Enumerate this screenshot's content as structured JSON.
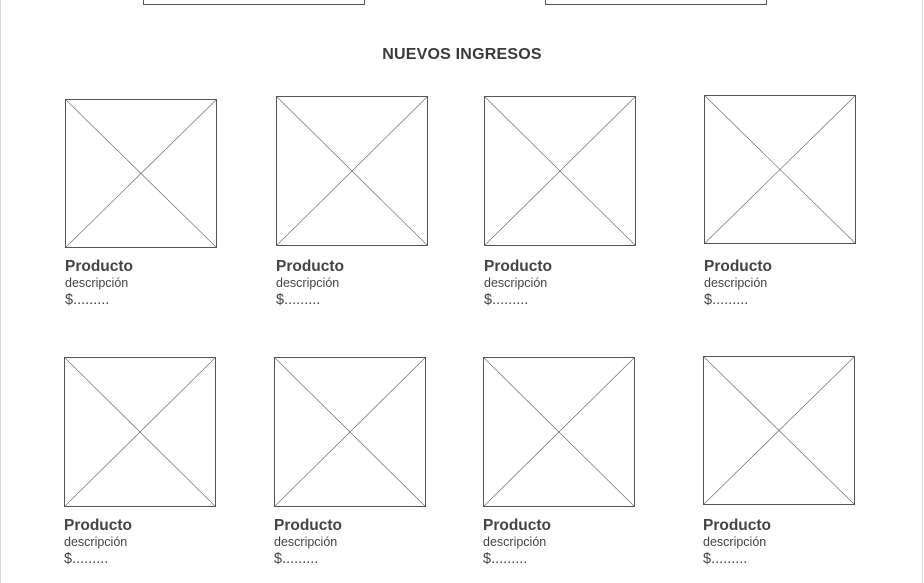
{
  "section": {
    "title": "NUEVOS INGRESOS"
  },
  "products": [
    {
      "name": "Producto",
      "description": "descripción",
      "price": "$.........",
      "image_icon": "image-placeholder-icon"
    },
    {
      "name": "Producto",
      "description": "descripción",
      "price": "$.........",
      "image_icon": "image-placeholder-icon"
    },
    {
      "name": "Producto",
      "description": "descripción",
      "price": "$.........",
      "image_icon": "image-placeholder-icon"
    },
    {
      "name": "Producto",
      "description": "descripción",
      "price": "$.........",
      "image_icon": "image-placeholder-icon"
    },
    {
      "name": "Producto",
      "description": "descripción",
      "price": "$.........",
      "image_icon": "image-placeholder-icon"
    },
    {
      "name": "Producto",
      "description": "descripción",
      "price": "$.........",
      "image_icon": "image-placeholder-icon"
    },
    {
      "name": "Producto",
      "description": "descripción",
      "price": "$.........",
      "image_icon": "image-placeholder-icon"
    },
    {
      "name": "Producto",
      "description": "descripción",
      "price": "$.........",
      "image_icon": "image-placeholder-icon"
    }
  ]
}
